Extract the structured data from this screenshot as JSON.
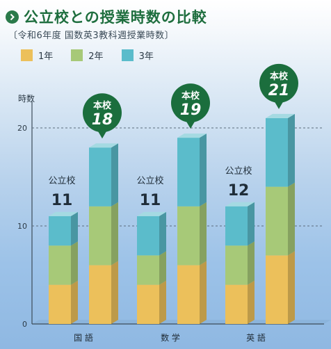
{
  "header": {
    "title": "公立校との授業時数の比較",
    "subtitle": "〔令和6年度 国数英3教科週授業時数〕"
  },
  "chart_data": {
    "type": "bar",
    "stacked": true,
    "ylabel": "時数",
    "ylim": [
      0,
      22
    ],
    "yticks": [
      0,
      10,
      20
    ],
    "legend_position": "top-left",
    "categories": [
      "国 語",
      "数 学",
      "英 語"
    ],
    "groups": [
      "公立校",
      "本校"
    ],
    "series_names": [
      "1年",
      "2年",
      "3年"
    ],
    "colors": {
      "1年": "#ecc05b",
      "2年": "#a7c978",
      "3年": "#5bbccb",
      "badge": "#1b6e3d"
    },
    "data": [
      {
        "category": "国 語",
        "公立校": [
          4,
          4,
          3
        ],
        "本校": [
          6,
          6,
          6
        ]
      },
      {
        "category": "数 学",
        "公立校": [
          4,
          3,
          4
        ],
        "本校": [
          6,
          6,
          7
        ]
      },
      {
        "category": "英 語",
        "公立校": [
          4,
          4,
          4
        ],
        "本校": [
          7,
          7,
          7
        ]
      }
    ],
    "annotations": [
      {
        "category": "国 語",
        "group": "公立校",
        "label": "公立校",
        "total": "11"
      },
      {
        "category": "国 語",
        "group": "本校",
        "label": "本校",
        "total": "18"
      },
      {
        "category": "数 学",
        "group": "公立校",
        "label": "公立校",
        "total": "11"
      },
      {
        "category": "数 学",
        "group": "本校",
        "label": "本校",
        "total": "19"
      },
      {
        "category": "英 語",
        "group": "公立校",
        "label": "公立校",
        "total": "12"
      },
      {
        "category": "英 語",
        "group": "本校",
        "label": "本校",
        "total": "21"
      }
    ]
  }
}
